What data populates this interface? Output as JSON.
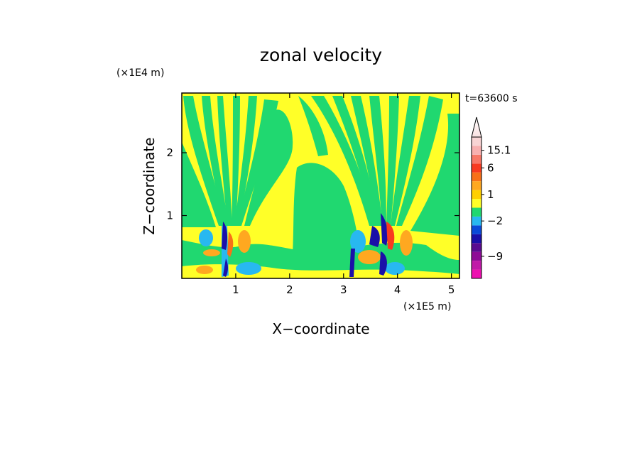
{
  "chart_data": {
    "type": "heatmap",
    "title": "zonal velocity",
    "xlabel": "X−coordinate",
    "ylabel": "Z−coordinate",
    "x_scale_label": "(×1E5 m)",
    "y_scale_label": "(×1E4 m)",
    "time_label": "t=63600 s",
    "xlim": [
      0,
      5.15
    ],
    "ylim": [
      0,
      2.95
    ],
    "x_ticks": [
      1,
      2,
      3,
      4,
      5
    ],
    "y_ticks": [
      1,
      2
    ],
    "x_tick_labels": [
      "1",
      "2",
      "3",
      "4",
      "5"
    ],
    "y_tick_labels": [
      "1",
      "2"
    ],
    "colorbar": {
      "levels": [
        {
          "color": "#ee10b0"
        },
        {
          "color": "#c01aa8"
        },
        {
          "color": "#8e0c96"
        },
        {
          "color": "#5a0c90"
        },
        {
          "color": "#1a10a8"
        },
        {
          "color": "#0a4ad8"
        },
        {
          "color": "#28b8f0"
        },
        {
          "color": "#20d870"
        },
        {
          "color": "#ffff28"
        },
        {
          "color": "#ffd000"
        },
        {
          "color": "#ffa820"
        },
        {
          "color": "#f87018"
        },
        {
          "color": "#f83a20"
        },
        {
          "color": "#f87868"
        },
        {
          "color": "#f8b0b0"
        },
        {
          "color": "#f8d4d4"
        }
      ],
      "labels": [
        {
          "text": "15.1",
          "level_index": 14
        },
        {
          "text": "6",
          "level_index": 12
        },
        {
          "text": "1",
          "level_index": 9
        },
        {
          "text": "−2",
          "level_index": 6
        },
        {
          "text": "−9",
          "level_index": 2
        }
      ]
    },
    "features": [
      {
        "kind": "jet",
        "x": 0.8,
        "z": 0.45,
        "polarity": "negative"
      },
      {
        "kind": "jet",
        "x": 3.55,
        "z": 0.45,
        "polarity": "negative"
      },
      {
        "kind": "jet",
        "x": 3.75,
        "z": 0.5,
        "polarity": "positive"
      }
    ]
  }
}
